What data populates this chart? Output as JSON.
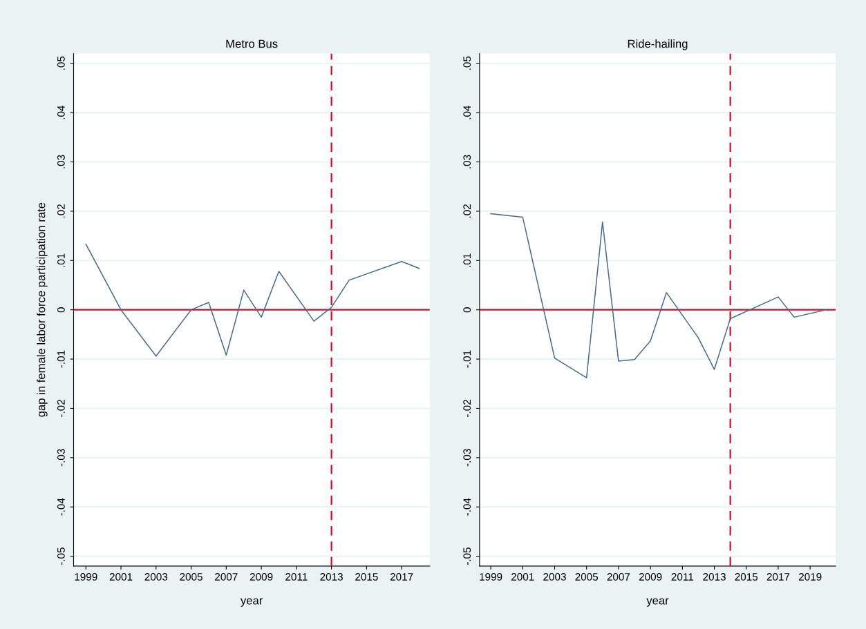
{
  "chart_data": [
    {
      "type": "line",
      "title": "Metro Bus",
      "xlabel": "year",
      "ylabel": "gap in female labor force participation rate",
      "x": [
        1999,
        2001,
        2003,
        2005,
        2006,
        2007,
        2008,
        2009,
        2010,
        2012,
        2013,
        2014,
        2017,
        2018
      ],
      "series": [
        {
          "color": "#4a6b8a",
          "values": [
            0.0133,
            0,
            -0.0094,
            0,
            0.0015,
            -0.0092,
            0.004,
            -0.0015,
            0.0078,
            -0.0023,
            0.0005,
            0.006,
            0.0098,
            0.0084
          ]
        }
      ],
      "xlim": [
        1998.3,
        2018.6
      ],
      "xticks": [
        1999,
        2001,
        2003,
        2005,
        2007,
        2009,
        2011,
        2013,
        2015,
        2017
      ],
      "ylim": [
        -0.052,
        0.052
      ],
      "yticks": [
        {
          "value": -0.05,
          "label": "-.05"
        },
        {
          "value": -0.04,
          "label": "-.04"
        },
        {
          "value": -0.03,
          "label": "-.03"
        },
        {
          "value": -0.02,
          "label": "-.02"
        },
        {
          "value": -0.01,
          "label": "-.01"
        },
        {
          "value": 0,
          "label": "0"
        },
        {
          "value": 0.01,
          "label": ".01"
        },
        {
          "value": 0.02,
          "label": ".02"
        },
        {
          "value": 0.03,
          "label": ".03"
        },
        {
          "value": 0.04,
          "label": ".04"
        },
        {
          "value": 0.05,
          "label": ".05"
        }
      ],
      "grid": "y",
      "line_style": "solid",
      "marker": "none",
      "ref_lines": [
        {
          "axis": "y",
          "value": 0,
          "color": "#c8102e",
          "line_style": "solid"
        },
        {
          "axis": "x",
          "value": 2013,
          "color": "#c8102e",
          "line_style": "dashed"
        }
      ]
    },
    {
      "type": "line",
      "title": "Ride-hailing",
      "xlabel": "year",
      "x": [
        1999,
        2001,
        2003,
        2005,
        2006,
        2007,
        2008,
        2009,
        2010,
        2012,
        2013,
        2014,
        2017,
        2018,
        2020
      ],
      "series": [
        {
          "color": "#4a6b8a",
          "values": [
            0.0195,
            0.0188,
            -0.0098,
            -0.0138,
            0.0178,
            -0.0104,
            -0.0101,
            -0.0063,
            0.0035,
            -0.0057,
            -0.0121,
            -0.0018,
            0.0026,
            -0.0015,
            0
          ]
        }
      ],
      "xlim": [
        1998.3,
        2020.6
      ],
      "xticks": [
        1999,
        2001,
        2003,
        2005,
        2007,
        2009,
        2011,
        2013,
        2015,
        2017,
        2019
      ],
      "ylim": [
        -0.052,
        0.052
      ],
      "yticks": [
        {
          "value": -0.05,
          "label": "-.05"
        },
        {
          "value": -0.04,
          "label": "-.04"
        },
        {
          "value": -0.03,
          "label": "-.03"
        },
        {
          "value": -0.02,
          "label": "-.02"
        },
        {
          "value": -0.01,
          "label": "-.01"
        },
        {
          "value": 0,
          "label": "0"
        },
        {
          "value": 0.01,
          "label": ".01"
        },
        {
          "value": 0.02,
          "label": ".02"
        },
        {
          "value": 0.03,
          "label": ".03"
        },
        {
          "value": 0.04,
          "label": ".04"
        },
        {
          "value": 0.05,
          "label": ".05"
        }
      ],
      "grid": "y",
      "line_style": "solid",
      "marker": "none",
      "ref_lines": [
        {
          "axis": "y",
          "value": 0,
          "color": "#c8102e",
          "line_style": "solid"
        },
        {
          "axis": "x",
          "value": 2014,
          "color": "#c8102e",
          "line_style": "dashed"
        }
      ]
    }
  ]
}
